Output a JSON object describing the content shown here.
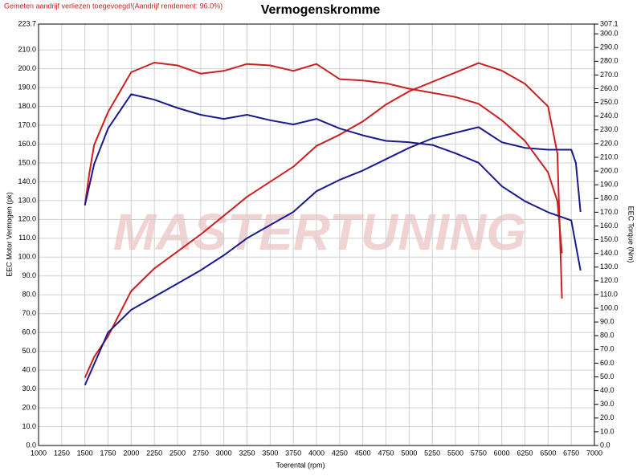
{
  "chart_data": {
    "type": "line",
    "title": "Vermogenskromme",
    "note": "Gemeten aandrijf verliezen toegevoegd!(Aandrijf rendement: 96.0%)",
    "watermark": "MASTERTUNING",
    "x_label": "Toerental (rpm)",
    "y_label": "EEC Motor Vermogen (pk)",
    "y2_label": "EEC Torque (Nm)",
    "grid": true,
    "xlim": [
      1000,
      7000
    ],
    "xticks": [
      1000,
      1250,
      1500,
      1750,
      2000,
      2250,
      2500,
      2750,
      3000,
      3250,
      3500,
      3750,
      4000,
      4250,
      4500,
      4750,
      5000,
      5250,
      5500,
      5750,
      6000,
      6250,
      6500,
      6750,
      7000
    ],
    "ylim": [
      0,
      223.7
    ],
    "yticks": [
      {
        "value": 0,
        "label": "0.0"
      },
      {
        "value": 10,
        "label": "10.0"
      },
      {
        "value": 20,
        "label": "20.0"
      },
      {
        "value": 30,
        "label": "30.0"
      },
      {
        "value": 40,
        "label": "40.0"
      },
      {
        "value": 50,
        "label": "50.0"
      },
      {
        "value": 60,
        "label": "60.0"
      },
      {
        "value": 70,
        "label": "70.0"
      },
      {
        "value": 80,
        "label": "80.0"
      },
      {
        "value": 90,
        "label": "90.0"
      },
      {
        "value": 100,
        "label": "100.0"
      },
      {
        "value": 110,
        "label": "110.0"
      },
      {
        "value": 120,
        "label": "120.0"
      },
      {
        "value": 130,
        "label": "130.0"
      },
      {
        "value": 140,
        "label": "140.0"
      },
      {
        "value": 150,
        "label": "150.0"
      },
      {
        "value": 160,
        "label": "160.0"
      },
      {
        "value": 170,
        "label": "170.0"
      },
      {
        "value": 180,
        "label": "180.0"
      },
      {
        "value": 190,
        "label": "190.0"
      },
      {
        "value": 200,
        "label": "200.0"
      },
      {
        "value": 210,
        "label": "210.0"
      },
      {
        "value": 223.7,
        "label": "223.7"
      }
    ],
    "y2lim": [
      0,
      307.1
    ],
    "y2ticks": [
      {
        "value": 0,
        "label": "0.0"
      },
      {
        "value": 10,
        "label": "10.0"
      },
      {
        "value": 20,
        "label": "20.0"
      },
      {
        "value": 30,
        "label": "30.0"
      },
      {
        "value": 40,
        "label": "40.0"
      },
      {
        "value": 50,
        "label": "50.0"
      },
      {
        "value": 60,
        "label": "60.0"
      },
      {
        "value": 70,
        "label": "70.0"
      },
      {
        "value": 80,
        "label": "80.0"
      },
      {
        "value": 90,
        "label": "90.0"
      },
      {
        "value": 100,
        "label": "100.0"
      },
      {
        "value": 110,
        "label": "110.0"
      },
      {
        "value": 120,
        "label": "120.0"
      },
      {
        "value": 130,
        "label": "130.0"
      },
      {
        "value": 140,
        "label": "140.0"
      },
      {
        "value": 150,
        "label": "150.0"
      },
      {
        "value": 160,
        "label": "160.0"
      },
      {
        "value": 170,
        "label": "170.0"
      },
      {
        "value": 180,
        "label": "180.0"
      },
      {
        "value": 190,
        "label": "190.0"
      },
      {
        "value": 200,
        "label": "200.0"
      },
      {
        "value": 210,
        "label": "210.0"
      },
      {
        "value": 220,
        "label": "220.0"
      },
      {
        "value": 230,
        "label": "230.0"
      },
      {
        "value": 240,
        "label": "240.0"
      },
      {
        "value": 250,
        "label": "250.0"
      },
      {
        "value": 260,
        "label": "260.0"
      },
      {
        "value": 270,
        "label": "270.0"
      },
      {
        "value": 280,
        "label": "280.0"
      },
      {
        "value": 290,
        "label": "290.0"
      },
      {
        "value": 300,
        "label": "300.0"
      },
      {
        "value": 307.1,
        "label": "307.1"
      }
    ],
    "series": [
      {
        "color": "#cc2020",
        "axis": "y",
        "x": [
          1500,
          1600,
          1750,
          2000,
          2250,
          2500,
          2750,
          3000,
          3250,
          3500,
          3750,
          4000,
          4250,
          4500,
          4750,
          5000,
          5250,
          5500,
          5750,
          6000,
          6250,
          6500,
          6600,
          6650
        ],
        "values": [
          36,
          47,
          58,
          82,
          94,
          103,
          112,
          122,
          132,
          140,
          148,
          159,
          165,
          172,
          181,
          188,
          193,
          198,
          203,
          199,
          192,
          180,
          155,
          78
        ]
      },
      {
        "color": "#1a1a8c",
        "axis": "y",
        "x": [
          1500,
          1750,
          2000,
          2250,
          2500,
          2750,
          3000,
          3250,
          3500,
          3750,
          4000,
          4250,
          4500,
          4750,
          5000,
          5250,
          5500,
          5750,
          6000,
          6250,
          6500,
          6750,
          6800,
          6850
        ],
        "values": [
          32,
          60,
          72,
          79,
          86,
          93,
          101,
          110,
          117,
          124,
          135,
          141,
          146,
          152,
          158,
          163,
          166,
          169,
          161,
          158,
          157,
          157,
          150,
          124
        ]
      },
      {
        "color": "#cc2020",
        "axis": "y2",
        "x": [
          1500,
          1550,
          1600,
          1750,
          2000,
          2250,
          2500,
          2750,
          3000,
          3250,
          3500,
          3750,
          4000,
          4250,
          4500,
          4750,
          5000,
          5250,
          5500,
          5750,
          6000,
          6250,
          6500,
          6600,
          6650
        ],
        "values": [
          175,
          199,
          219,
          243,
          272,
          279,
          277,
          271,
          273,
          278,
          277,
          273,
          278,
          267,
          266,
          264,
          260,
          257,
          254,
          249,
          237,
          222,
          199,
          178,
          140
        ]
      },
      {
        "color": "#1a1a8c",
        "axis": "y2",
        "x": [
          1500,
          1600,
          1750,
          2000,
          2250,
          2500,
          2750,
          3000,
          3250,
          3500,
          3750,
          4000,
          4250,
          4500,
          4750,
          5000,
          5250,
          5500,
          5750,
          6000,
          6250,
          6500,
          6750,
          6850
        ],
        "values": [
          175,
          205,
          231,
          256,
          252,
          246,
          241,
          238,
          241,
          237,
          234,
          238,
          231,
          226,
          222,
          221,
          219,
          213,
          206,
          189,
          178,
          170,
          164,
          127.5
        ]
      }
    ]
  }
}
